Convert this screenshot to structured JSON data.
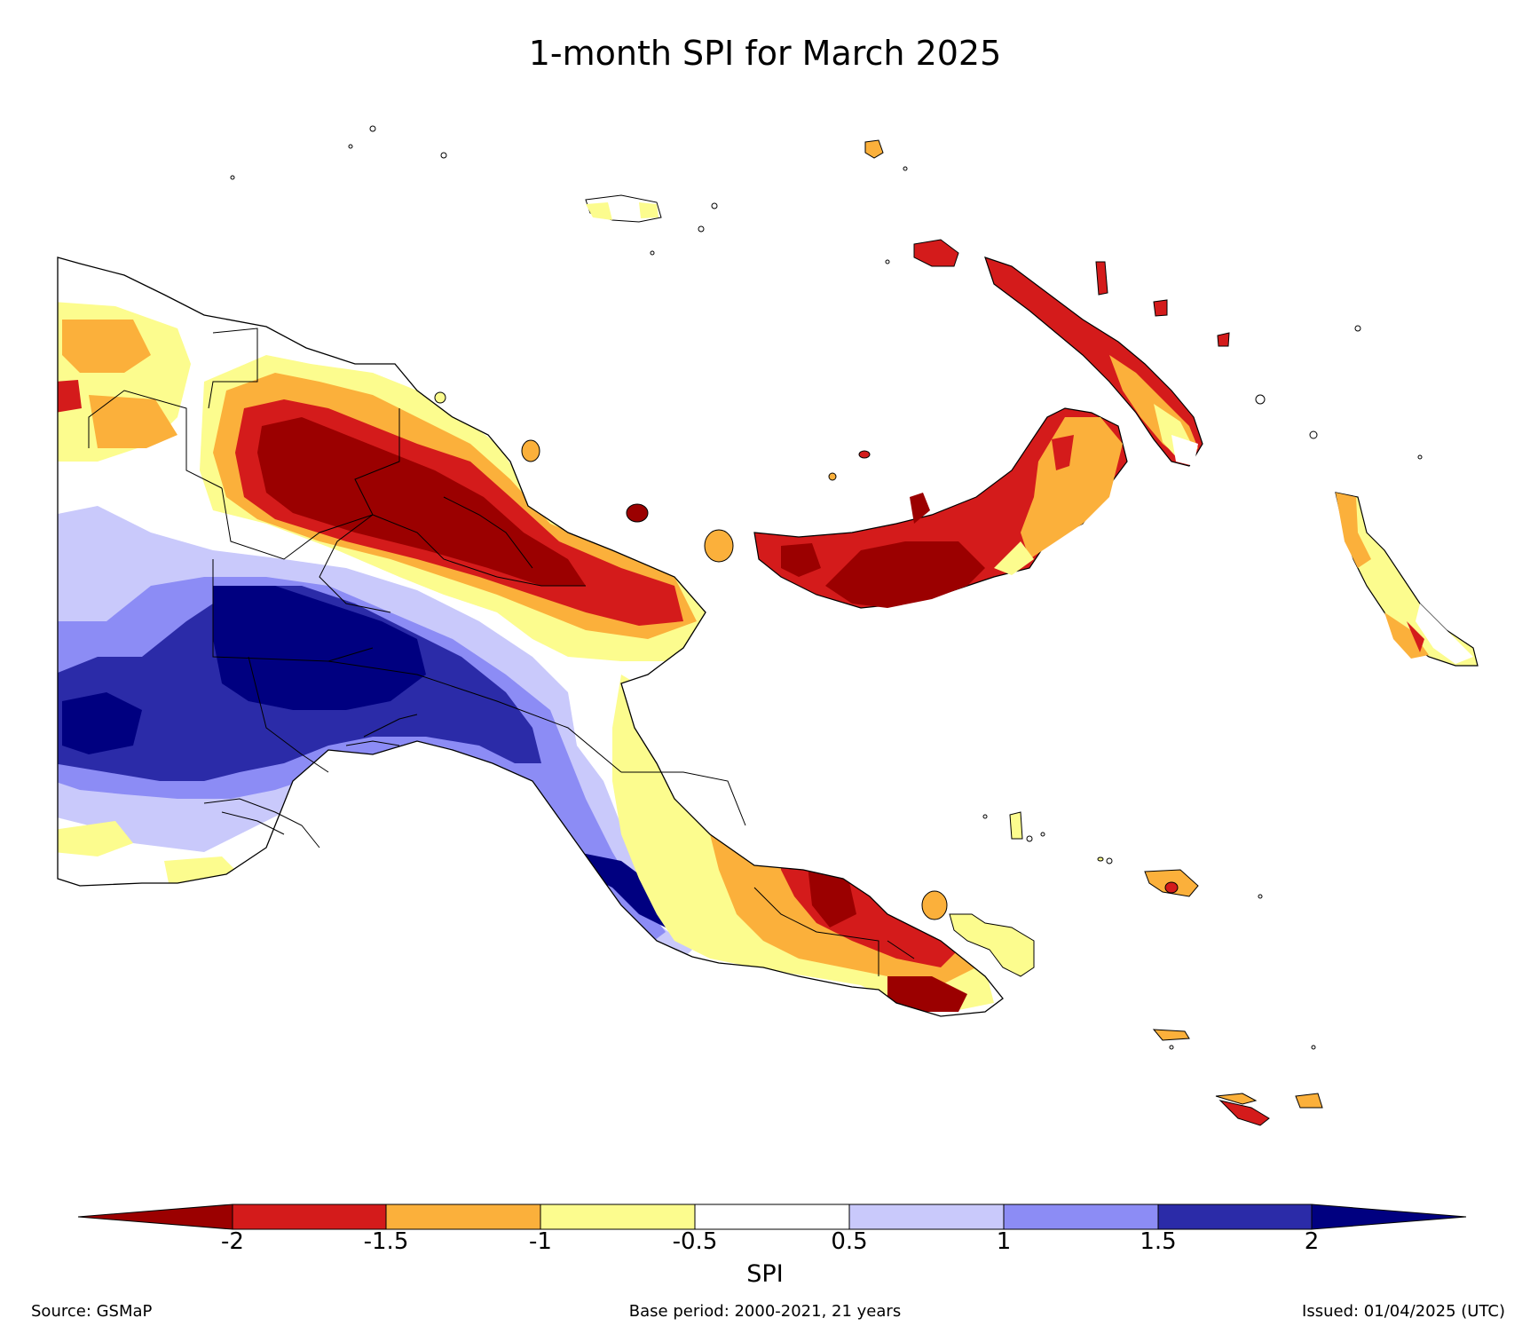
{
  "title": "1-month SPI for March 2025",
  "colorbar": {
    "label": "SPI",
    "ticks": [
      "-2",
      "-1.5",
      "-1",
      "-0.5",
      "0.5",
      "1",
      "1.5",
      "2"
    ],
    "classes": [
      {
        "range": "< -2",
        "color": "#9b0000"
      },
      {
        "range": "-2 to -1.5",
        "color": "#d41b1b"
      },
      {
        "range": "-1.5 to -1",
        "color": "#fbb03b"
      },
      {
        "range": "-1 to -0.5",
        "color": "#fcfc8e"
      },
      {
        "range": "-0.5 to 0.5",
        "color": "#ffffff"
      },
      {
        "range": "0.5 to 1",
        "color": "#c9c9fb"
      },
      {
        "range": "1 to 1.5",
        "color": "#8c8cf5"
      },
      {
        "range": "1.5 to 2",
        "color": "#2b2ba8"
      },
      {
        "range": "> 2",
        "color": "#000080"
      }
    ]
  },
  "footer": {
    "source": "Source: GSMaP",
    "base_period": "Base period: 2000-2021, 21 years",
    "issued": "Issued: 01/04/2025 (UTC)"
  }
}
